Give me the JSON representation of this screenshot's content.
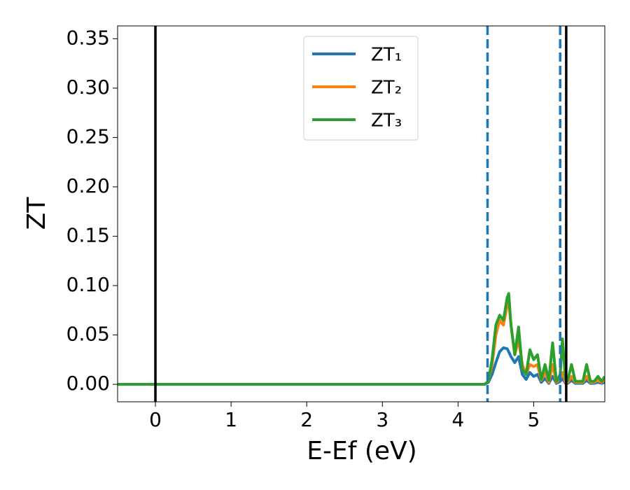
{
  "chart_data": {
    "type": "line",
    "xlabel": "E-Ef (eV)",
    "ylabel": "ZT",
    "x": [
      -0.5,
      0,
      1,
      2,
      3,
      4,
      4.35,
      4.4,
      4.45,
      4.5,
      4.55,
      4.6,
      4.65,
      4.67,
      4.7,
      4.75,
      4.8,
      4.85,
      4.9,
      4.95,
      5.0,
      5.05,
      5.1,
      5.15,
      5.2,
      5.25,
      5.3,
      5.35,
      5.38,
      5.42,
      5.45,
      5.5,
      5.55,
      5.6,
      5.65,
      5.7,
      5.75,
      5.8,
      5.85,
      5.9,
      5.94
    ],
    "series": [
      {
        "name": "ZT₁",
        "color": "#1f77b4",
        "values": [
          0,
          0,
          0,
          0,
          0,
          0,
          0,
          0.002,
          0.01,
          0.022,
          0.033,
          0.037,
          0.036,
          0.033,
          0.028,
          0.022,
          0.028,
          0.01,
          0.005,
          0.012,
          0.008,
          0.01,
          0.002,
          0.006,
          0.001,
          0.008,
          0.001,
          0.003,
          0.006,
          0.001,
          0.001,
          0.004,
          0.001,
          0.001,
          0.001,
          0.004,
          0.001,
          0.001,
          0.002,
          0.001,
          0.002
        ]
      },
      {
        "name": "ZT₂",
        "color": "#ff7f0e",
        "values": [
          0,
          0,
          0,
          0,
          0,
          0,
          0,
          0.003,
          0.02,
          0.05,
          0.065,
          0.06,
          0.08,
          0.085,
          0.06,
          0.03,
          0.045,
          0.02,
          0.01,
          0.02,
          0.018,
          0.02,
          0.004,
          0.012,
          0.002,
          0.02,
          0.002,
          0.006,
          0.012,
          0.002,
          0.002,
          0.008,
          0.002,
          0.002,
          0.002,
          0.008,
          0.002,
          0.002,
          0.004,
          0.002,
          0.005
        ]
      },
      {
        "name": "ZT₃",
        "color": "#2ca02c",
        "values": [
          0,
          0,
          0,
          0,
          0,
          0,
          0,
          0.003,
          0.025,
          0.06,
          0.07,
          0.065,
          0.088,
          0.092,
          0.06,
          0.03,
          0.058,
          0.015,
          0.01,
          0.035,
          0.025,
          0.03,
          0.005,
          0.02,
          0.004,
          0.042,
          0.003,
          0.01,
          0.046,
          0.005,
          0.004,
          0.02,
          0.003,
          0.003,
          0.003,
          0.02,
          0.003,
          0.003,
          0.008,
          0.003,
          0.008
        ]
      }
    ],
    "vlines": [
      {
        "x": 0,
        "color": "#000000",
        "style": "solid"
      },
      {
        "x": 4.39,
        "color": "#1f77b4",
        "style": "dashed"
      },
      {
        "x": 5.35,
        "color": "#1f77b4",
        "style": "dashed"
      },
      {
        "x": 5.43,
        "color": "#000000",
        "style": "solid"
      }
    ],
    "xlim": [
      -0.5,
      5.94
    ],
    "ylim": [
      -0.0177,
      0.363
    ],
    "xticks": [
      0,
      1,
      2,
      3,
      4,
      5
    ],
    "yticks": [
      {
        "value": 0,
        "label": "0.00"
      },
      {
        "value": 0.05,
        "label": "0.05"
      },
      {
        "value": 0.1,
        "label": "0.10"
      },
      {
        "value": 0.15,
        "label": "0.15"
      },
      {
        "value": 0.2,
        "label": "0.20"
      },
      {
        "value": 0.25,
        "label": "0.25"
      },
      {
        "value": 0.3,
        "label": "0.30"
      },
      {
        "value": 0.35,
        "label": "0.35"
      }
    ],
    "legend": "upper center",
    "grid": false
  }
}
